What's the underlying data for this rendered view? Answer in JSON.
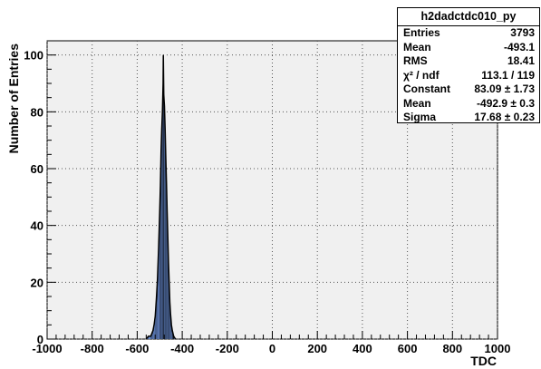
{
  "chart_data": {
    "type": "histogram",
    "xlabel": "TDC",
    "ylabel": "Number of Entries",
    "xlim": [
      -1000,
      1000
    ],
    "ylim": [
      0,
      105
    ],
    "x_ticks": [
      "-1000",
      "-800",
      "-600",
      "-400",
      "-200",
      "0",
      "200",
      "400",
      "600",
      "800",
      "1000"
    ],
    "y_ticks": [
      "0",
      "20",
      "40",
      "60",
      "80",
      "100"
    ],
    "grid": true,
    "fill_color": "#6b8fd6",
    "frame_bg": "#f0f0f0",
    "bins": [
      [
        -560,
        0
      ],
      [
        -550,
        1
      ],
      [
        -540,
        1
      ],
      [
        -535,
        2
      ],
      [
        -530,
        3
      ],
      [
        -525,
        5
      ],
      [
        -520,
        8
      ],
      [
        -515,
        14
      ],
      [
        -510,
        21
      ],
      [
        -505,
        32
      ],
      [
        -500,
        45
      ],
      [
        -497,
        54
      ],
      [
        -494,
        66
      ],
      [
        -491,
        74
      ],
      [
        -488,
        80
      ],
      [
        -485,
        90
      ],
      [
        -484,
        100
      ],
      [
        -482,
        86
      ],
      [
        -479,
        82
      ],
      [
        -476,
        74
      ],
      [
        -473,
        64
      ],
      [
        -470,
        55
      ],
      [
        -467,
        45
      ],
      [
        -464,
        36
      ],
      [
        -461,
        27
      ],
      [
        -458,
        20
      ],
      [
        -455,
        13
      ],
      [
        -452,
        9
      ],
      [
        -448,
        5
      ],
      [
        -444,
        3
      ],
      [
        -438,
        1
      ],
      [
        -430,
        0
      ]
    ],
    "fit_curve": {
      "constant": 83.09,
      "mean": -492.9,
      "sigma": 17.68
    }
  },
  "stats": {
    "title": "h2dadctdc010_py",
    "rows": [
      {
        "label": "Entries",
        "value": "3793"
      },
      {
        "label": "Mean",
        "value": "-493.1"
      },
      {
        "label": "RMS",
        "value": "18.41"
      },
      {
        "label": "χ² / ndf",
        "value": "113.1 / 119"
      },
      {
        "label": "Constant",
        "value": "83.09 ± 1.73"
      },
      {
        "label": "Mean",
        "value": "-492.9 ± 0.3"
      },
      {
        "label": "Sigma",
        "value": "17.68 ± 0.23"
      }
    ]
  }
}
